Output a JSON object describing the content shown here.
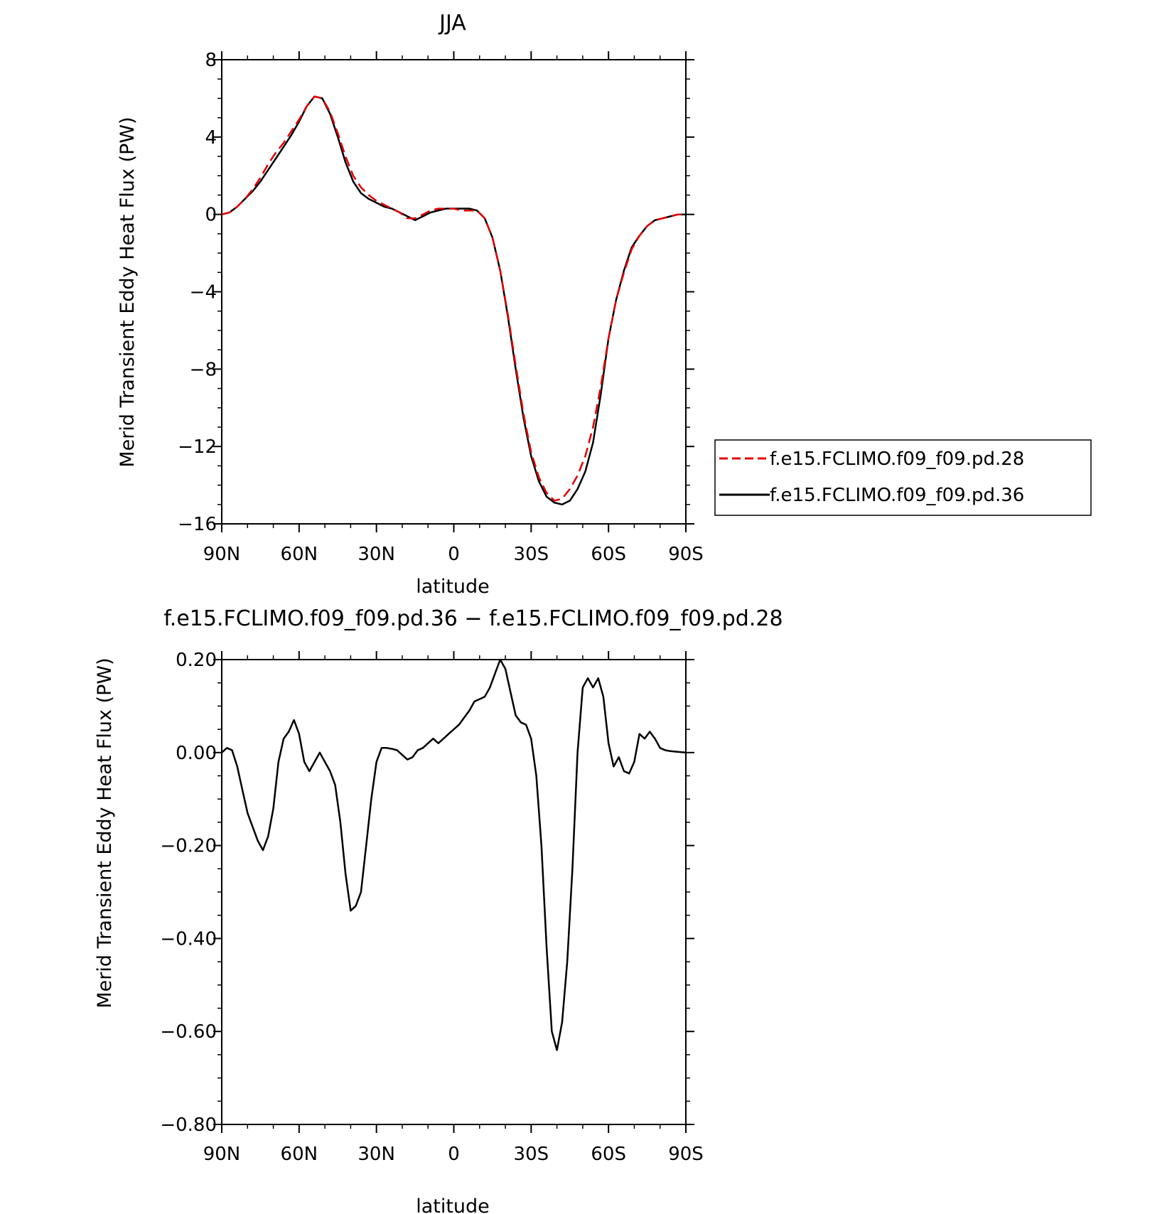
{
  "chart_data": [
    {
      "type": "line",
      "title": "JJA",
      "xlabel": "latitude",
      "ylabel": "Merid Transient Eddy Heat Flux (PW)",
      "xlim": [
        90,
        -90
      ],
      "ylim": [
        -16,
        8
      ],
      "xticks": [
        90,
        60,
        30,
        0,
        -30,
        -60,
        -90
      ],
      "xtick_labels": [
        "90N",
        "60N",
        "30N",
        "0",
        "30S",
        "60S",
        "90S"
      ],
      "yticks": [
        -16,
        -12,
        -8,
        -4,
        0,
        4,
        8
      ],
      "ytick_labels": [
        "−16",
        "−12",
        "−8",
        "−4",
        "0",
        "4",
        "8"
      ],
      "grid": false,
      "legend_position": "outside-right",
      "series": [
        {
          "name": "f.e15.FCLIMO.f09_f09.pd.28",
          "color": "#e00000",
          "dash": "dashed",
          "x": [
            90,
            87,
            84,
            81,
            78,
            75,
            72,
            69,
            66,
            63,
            60,
            57,
            54,
            51,
            48,
            45,
            42,
            39,
            36,
            33,
            30,
            27,
            24,
            21,
            18,
            15,
            12,
            9,
            6,
            3,
            0,
            -3,
            -6,
            -9,
            -12,
            -15,
            -18,
            -21,
            -24,
            -27,
            -30,
            -33,
            -36,
            -39,
            -42,
            -45,
            -48,
            -51,
            -54,
            -57,
            -60,
            -63,
            -66,
            -69,
            -72,
            -75,
            -78,
            -81,
            -84,
            -87,
            -90
          ],
          "y": [
            0.0,
            0.1,
            0.4,
            0.8,
            1.3,
            1.9,
            2.6,
            3.2,
            3.7,
            4.3,
            4.9,
            5.6,
            6.1,
            6.0,
            5.3,
            4.2,
            3.0,
            2.0,
            1.4,
            1.0,
            0.7,
            0.5,
            0.3,
            0.1,
            -0.2,
            -0.2,
            0.0,
            0.2,
            0.3,
            0.3,
            0.3,
            0.2,
            0.2,
            0.2,
            -0.2,
            -1.2,
            -2.9,
            -5.2,
            -7.8,
            -10.3,
            -12.3,
            -13.6,
            -14.4,
            -14.8,
            -14.7,
            -14.2,
            -13.5,
            -12.5,
            -11.0,
            -8.9,
            -6.4,
            -4.4,
            -3.0,
            -1.8,
            -1.1,
            -0.6,
            -0.3,
            -0.2,
            -0.1,
            0.0,
            0.0
          ]
        },
        {
          "name": "f.e15.FCLIMO.f09_f09.pd.36",
          "color": "#000000",
          "dash": "solid",
          "x": [
            90,
            87,
            84,
            81,
            78,
            75,
            72,
            69,
            66,
            63,
            60,
            57,
            54,
            51,
            48,
            45,
            42,
            39,
            36,
            33,
            30,
            27,
            24,
            21,
            18,
            15,
            12,
            9,
            6,
            3,
            0,
            -3,
            -6,
            -9,
            -12,
            -15,
            -18,
            -21,
            -24,
            -27,
            -30,
            -33,
            -36,
            -39,
            -42,
            -45,
            -48,
            -51,
            -54,
            -57,
            -60,
            -63,
            -66,
            -69,
            -72,
            -75,
            -78,
            -81,
            -84,
            -87,
            -90
          ],
          "y": [
            0.0,
            0.1,
            0.4,
            0.8,
            1.2,
            1.7,
            2.3,
            2.9,
            3.5,
            4.1,
            4.8,
            5.6,
            6.1,
            6.0,
            5.2,
            4.0,
            2.7,
            1.7,
            1.1,
            0.8,
            0.6,
            0.4,
            0.3,
            0.1,
            -0.1,
            -0.3,
            -0.1,
            0.1,
            0.2,
            0.3,
            0.3,
            0.3,
            0.3,
            0.2,
            -0.2,
            -1.2,
            -2.9,
            -5.3,
            -8.0,
            -10.5,
            -12.5,
            -13.8,
            -14.6,
            -14.9,
            -15.0,
            -14.8,
            -14.2,
            -13.3,
            -11.8,
            -9.3,
            -6.4,
            -4.4,
            -2.9,
            -1.7,
            -1.1,
            -0.6,
            -0.3,
            -0.2,
            -0.1,
            0.0,
            0.0
          ]
        }
      ]
    },
    {
      "type": "line",
      "title": "f.e15.FCLIMO.f09_f09.pd.36 − f.e15.FCLIMO.f09_f09.pd.28",
      "xlabel": "latitude",
      "ylabel": "Merid Transient Eddy Heat Flux (PW)",
      "xlim": [
        90,
        -90
      ],
      "ylim": [
        -0.8,
        0.2
      ],
      "xticks": [
        90,
        60,
        30,
        0,
        -30,
        -60,
        -90
      ],
      "xtick_labels": [
        "90N",
        "60N",
        "30N",
        "0",
        "30S",
        "60S",
        "90S"
      ],
      "yticks": [
        -0.8,
        -0.6,
        -0.4,
        -0.2,
        0.0,
        0.2
      ],
      "ytick_labels": [
        "−0.80",
        "−0.60",
        "−0.40",
        "−0.20",
        "0.00",
        "0.20"
      ],
      "grid": false,
      "series": [
        {
          "color": "#000000",
          "dash": "solid",
          "x": [
            90,
            88,
            86,
            84,
            82,
            80,
            78,
            76,
            74,
            72,
            70,
            68,
            66,
            64,
            62,
            60,
            58,
            56,
            54,
            52,
            50,
            48,
            46,
            44,
            42,
            40,
            38,
            36,
            34,
            32,
            30,
            28,
            26,
            24,
            22,
            20,
            18,
            16,
            14,
            12,
            10,
            8,
            6,
            4,
            2,
            0,
            -2,
            -4,
            -6,
            -8,
            -10,
            -12,
            -14,
            -16,
            -18,
            -20,
            -22,
            -24,
            -26,
            -28,
            -30,
            -32,
            -34,
            -36,
            -38,
            -40,
            -42,
            -44,
            -46,
            -48,
            -50,
            -52,
            -54,
            -56,
            -58,
            -60,
            -62,
            -64,
            -66,
            -68,
            -70,
            -72,
            -74,
            -76,
            -78,
            -80,
            -82,
            -84,
            -86,
            -88,
            -90
          ],
          "y": [
            0.0,
            0.01,
            0.005,
            -0.03,
            -0.08,
            -0.13,
            -0.16,
            -0.19,
            -0.21,
            -0.18,
            -0.12,
            -0.02,
            0.03,
            0.045,
            0.07,
            0.04,
            -0.02,
            -0.04,
            -0.02,
            0.0,
            -0.02,
            -0.04,
            -0.07,
            -0.15,
            -0.26,
            -0.34,
            -0.33,
            -0.3,
            -0.2,
            -0.1,
            -0.02,
            0.01,
            0.01,
            0.008,
            0.005,
            -0.005,
            -0.015,
            -0.01,
            0.005,
            0.01,
            0.02,
            0.03,
            0.02,
            0.03,
            0.04,
            0.05,
            0.06,
            0.075,
            0.09,
            0.11,
            0.115,
            0.12,
            0.14,
            0.17,
            0.2,
            0.18,
            0.13,
            0.08,
            0.065,
            0.06,
            0.03,
            -0.05,
            -0.2,
            -0.42,
            -0.6,
            -0.64,
            -0.58,
            -0.45,
            -0.25,
            0.0,
            0.14,
            0.16,
            0.14,
            0.16,
            0.12,
            0.02,
            -0.03,
            -0.01,
            -0.04,
            -0.045,
            -0.02,
            0.04,
            0.03,
            0.045,
            0.03,
            0.01,
            0.005,
            0.003,
            0.002,
            0.001,
            0.0
          ]
        }
      ]
    }
  ]
}
